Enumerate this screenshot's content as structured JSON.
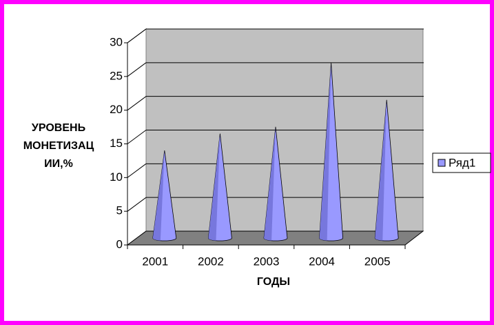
{
  "chart_data": {
    "type": "cone3d",
    "ylabel": [
      "УРОВЕНЬ",
      "МОНЕТИЗАЦ",
      "ИИ,%"
    ],
    "xlabel": "ГОДЫ",
    "categories": [
      "2001",
      "2002",
      "2003",
      "2004",
      "2005"
    ],
    "series": [
      {
        "name": "Ряд1",
        "color": "#9999ff",
        "values": [
          13,
          15.5,
          16.5,
          26,
          20.5
        ]
      }
    ],
    "ylim": [
      0,
      30
    ],
    "yticks": [
      0,
      5,
      10,
      15,
      20,
      25,
      30
    ],
    "grid": true,
    "legend": "right"
  }
}
